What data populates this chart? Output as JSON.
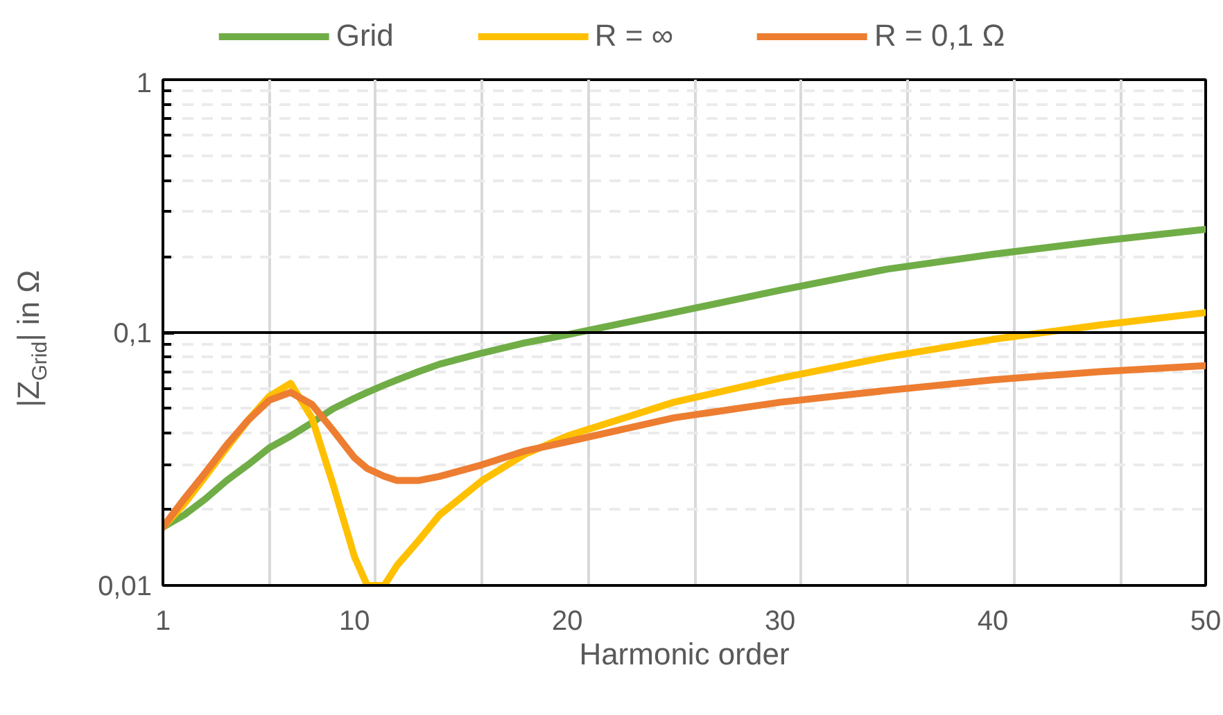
{
  "chart_data": {
    "type": "line",
    "xlabel": "Harmonic order",
    "ylabel": "|Z$_{Grid}$| in Ω",
    "x": [
      1,
      2,
      3,
      4,
      5,
      6,
      7,
      8,
      9,
      10,
      10.6,
      11.4,
      12,
      13,
      14,
      16,
      18,
      20,
      25,
      30,
      35,
      40,
      45,
      50
    ],
    "series": [
      {
        "name": "Grid",
        "color": "#70ad47",
        "values": [
          0.017,
          0.019,
          0.022,
          0.026,
          0.03,
          0.035,
          0.039,
          0.044,
          0.05,
          0.055,
          0.058,
          0.062,
          0.065,
          0.07,
          0.075,
          0.083,
          0.091,
          0.098,
          0.12,
          0.147,
          0.178,
          0.204,
          0.23,
          0.256
        ]
      },
      {
        "name": "R = ∞",
        "color": "#ffc000",
        "values": [
          0.017,
          0.021,
          0.027,
          0.035,
          0.045,
          0.056,
          0.063,
          0.046,
          0.025,
          0.013,
          0.01,
          0.01,
          0.012,
          0.015,
          0.019,
          0.026,
          0.033,
          0.039,
          0.053,
          0.066,
          0.08,
          0.094,
          0.107,
          0.12
        ]
      },
      {
        "name": "R = 0,1 Ω",
        "color": "#ed7d31",
        "values": [
          0.017,
          0.022,
          0.028,
          0.036,
          0.045,
          0.054,
          0.058,
          0.052,
          0.041,
          0.032,
          0.029,
          0.027,
          0.026,
          0.026,
          0.027,
          0.03,
          0.034,
          0.037,
          0.046,
          0.053,
          0.059,
          0.065,
          0.07,
          0.074
        ]
      }
    ],
    "xlim": [
      1,
      50
    ],
    "xticks": [
      1,
      {
        "value": 6,
        "label": null
      },
      10,
      {
        "value": 11,
        "label": null
      },
      {
        "value": 16,
        "label": null
      },
      20,
      {
        "value": 21,
        "label": null
      },
      {
        "value": 26,
        "label": null
      },
      30,
      {
        "value": 31,
        "label": null
      },
      {
        "value": 36,
        "label": null
      },
      40,
      {
        "value": 41,
        "label": null
      },
      {
        "value": 46,
        "label": null
      },
      50
    ],
    "ylim": [
      0.01,
      1
    ],
    "yticks": [
      {
        "value": 0.01,
        "label": "0,01"
      },
      {
        "value": 0.02,
        "label": null
      },
      {
        "value": 0.03,
        "label": null
      },
      {
        "value": 0.04,
        "label": null
      },
      {
        "value": 0.05,
        "label": null
      },
      {
        "value": 0.06,
        "label": null
      },
      {
        "value": 0.07,
        "label": null
      },
      {
        "value": 0.08,
        "label": null
      },
      {
        "value": 0.09,
        "label": null
      },
      {
        "value": 0.1,
        "label": "0,1"
      },
      {
        "value": 0.2,
        "label": null
      },
      {
        "value": 0.3,
        "label": null
      },
      {
        "value": 0.4,
        "label": null
      },
      {
        "value": 0.5,
        "label": null
      },
      {
        "value": 0.6,
        "label": null
      },
      {
        "value": 0.7,
        "label": null
      },
      {
        "value": 0.8,
        "label": null
      },
      {
        "value": 0.9,
        "label": null
      },
      1
    ],
    "ref_lines": [
      {
        "axis": "y",
        "value": 0.1,
        "color": "#000000"
      }
    ],
    "log": true,
    "grid": true,
    "legend": "top",
    "line_style": "solid"
  }
}
